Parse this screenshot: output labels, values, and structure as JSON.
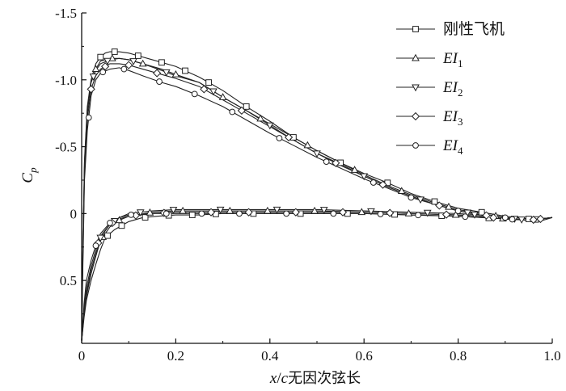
{
  "chart_data": {
    "type": "line",
    "title": "",
    "xlabel": "x/c无因次弦长",
    "ylabel": "Cp",
    "xlim": [
      0,
      1.0
    ],
    "ylim": [
      0.97,
      -1.5
    ],
    "y_inverted": true,
    "grid": false,
    "legend_position": "top-right",
    "xticks": [
      "0",
      "0.2",
      "0.4",
      "0.6",
      "0.8",
      "1.0"
    ],
    "yticks": [
      "-1.5",
      "-1.0",
      "-0.5",
      "0",
      "0.5"
    ],
    "series": [
      {
        "name": "刚性飞机",
        "marker": "square",
        "upper": [
          [
            0,
            0.95
          ],
          [
            0.002,
            0.4
          ],
          [
            0.006,
            -0.4
          ],
          [
            0.012,
            -0.8
          ],
          [
            0.02,
            -1.0
          ],
          [
            0.03,
            -1.12
          ],
          [
            0.04,
            -1.17
          ],
          [
            0.05,
            -1.2
          ],
          [
            0.06,
            -1.21
          ],
          [
            0.08,
            -1.21
          ],
          [
            0.1,
            -1.2
          ],
          [
            0.12,
            -1.18
          ],
          [
            0.15,
            -1.15
          ],
          [
            0.2,
            -1.1
          ],
          [
            0.25,
            -1.02
          ],
          [
            0.3,
            -0.92
          ],
          [
            0.35,
            -0.8
          ],
          [
            0.4,
            -0.69
          ],
          [
            0.45,
            -0.57
          ],
          [
            0.5,
            -0.47
          ],
          [
            0.55,
            -0.38
          ],
          [
            0.6,
            -0.3
          ],
          [
            0.65,
            -0.23
          ],
          [
            0.7,
            -0.15
          ],
          [
            0.75,
            -0.09
          ],
          [
            0.8,
            -0.04
          ],
          [
            0.85,
            -0.01
          ],
          [
            0.9,
            0.02
          ],
          [
            0.95,
            0.04
          ],
          [
            0.98,
            0.05
          ],
          [
            1.0,
            0.03
          ]
        ],
        "lower": [
          [
            0,
            0.95
          ],
          [
            0.005,
            0.78
          ],
          [
            0.01,
            0.65
          ],
          [
            0.02,
            0.5
          ],
          [
            0.03,
            0.38
          ],
          [
            0.04,
            0.27
          ],
          [
            0.05,
            0.18
          ],
          [
            0.07,
            0.12
          ],
          [
            0.1,
            0.06
          ],
          [
            0.13,
            0.03
          ],
          [
            0.16,
            0.02
          ],
          [
            0.2,
            0.01
          ],
          [
            0.25,
            0.01
          ],
          [
            0.3,
            0.0
          ],
          [
            0.4,
            0.0
          ],
          [
            0.5,
            0.0
          ],
          [
            0.6,
            0.0
          ],
          [
            0.7,
            0.01
          ],
          [
            0.8,
            0.02
          ],
          [
            0.85,
            0.03
          ],
          [
            0.9,
            0.04
          ],
          [
            0.95,
            0.05
          ],
          [
            1.0,
            0.03
          ]
        ]
      },
      {
        "name": "EI1",
        "marker": "triangle-up",
        "upper": [
          [
            0,
            0.95
          ],
          [
            0.002,
            0.4
          ],
          [
            0.006,
            -0.35
          ],
          [
            0.012,
            -0.75
          ],
          [
            0.02,
            -0.98
          ],
          [
            0.03,
            -1.08
          ],
          [
            0.04,
            -1.14
          ],
          [
            0.06,
            -1.16
          ],
          [
            0.08,
            -1.16
          ],
          [
            0.1,
            -1.15
          ],
          [
            0.13,
            -1.12
          ],
          [
            0.17,
            -1.08
          ],
          [
            0.2,
            -1.04
          ],
          [
            0.25,
            -0.98
          ],
          [
            0.3,
            -0.87
          ],
          [
            0.35,
            -0.77
          ],
          [
            0.4,
            -0.67
          ],
          [
            0.45,
            -0.57
          ],
          [
            0.5,
            -0.47
          ],
          [
            0.55,
            -0.38
          ],
          [
            0.6,
            -0.29
          ],
          [
            0.65,
            -0.21
          ],
          [
            0.7,
            -0.14
          ],
          [
            0.75,
            -0.08
          ],
          [
            0.8,
            -0.03
          ],
          [
            0.85,
            0.0
          ],
          [
            0.9,
            0.03
          ],
          [
            0.95,
            0.05
          ],
          [
            1.0,
            0.03
          ]
        ],
        "lower": [
          [
            0,
            0.95
          ],
          [
            0.005,
            0.76
          ],
          [
            0.01,
            0.62
          ],
          [
            0.02,
            0.45
          ],
          [
            0.03,
            0.32
          ],
          [
            0.04,
            0.2
          ],
          [
            0.06,
            0.1
          ],
          [
            0.08,
            0.05
          ],
          [
            0.1,
            0.02
          ],
          [
            0.15,
            -0.01
          ],
          [
            0.2,
            -0.02
          ],
          [
            0.25,
            -0.02
          ],
          [
            0.3,
            -0.02
          ],
          [
            0.4,
            -0.02
          ],
          [
            0.5,
            -0.02
          ],
          [
            0.6,
            -0.01
          ],
          [
            0.7,
            0.0
          ],
          [
            0.8,
            0.01
          ],
          [
            0.85,
            0.02
          ],
          [
            0.9,
            0.04
          ],
          [
            0.95,
            0.05
          ],
          [
            1.0,
            0.03
          ]
        ]
      },
      {
        "name": "EI2",
        "marker": "triangle-down",
        "upper": [
          [
            0,
            0.95
          ],
          [
            0.002,
            0.4
          ],
          [
            0.006,
            -0.38
          ],
          [
            0.012,
            -0.78
          ],
          [
            0.02,
            -0.98
          ],
          [
            0.03,
            -1.07
          ],
          [
            0.04,
            -1.12
          ],
          [
            0.06,
            -1.15
          ],
          [
            0.08,
            -1.16
          ],
          [
            0.1,
            -1.15
          ],
          [
            0.13,
            -1.12
          ],
          [
            0.17,
            -1.07
          ],
          [
            0.2,
            -1.03
          ],
          [
            0.25,
            -0.98
          ],
          [
            0.3,
            -0.87
          ],
          [
            0.35,
            -0.77
          ],
          [
            0.4,
            -0.66
          ],
          [
            0.45,
            -0.55
          ],
          [
            0.5,
            -0.45
          ],
          [
            0.55,
            -0.37
          ],
          [
            0.6,
            -0.28
          ],
          [
            0.65,
            -0.2
          ],
          [
            0.7,
            -0.13
          ],
          [
            0.75,
            -0.07
          ],
          [
            0.8,
            -0.02
          ],
          [
            0.85,
            0.01
          ],
          [
            0.9,
            0.03
          ],
          [
            0.95,
            0.05
          ],
          [
            1.0,
            0.03
          ]
        ],
        "lower": [
          [
            0,
            0.95
          ],
          [
            0.005,
            0.74
          ],
          [
            0.01,
            0.6
          ],
          [
            0.02,
            0.42
          ],
          [
            0.03,
            0.3
          ],
          [
            0.04,
            0.18
          ],
          [
            0.06,
            0.08
          ],
          [
            0.08,
            0.03
          ],
          [
            0.1,
            0.0
          ],
          [
            0.15,
            -0.02
          ],
          [
            0.2,
            -0.03
          ],
          [
            0.25,
            -0.03
          ],
          [
            0.3,
            -0.03
          ],
          [
            0.4,
            -0.03
          ],
          [
            0.5,
            -0.03
          ],
          [
            0.6,
            -0.02
          ],
          [
            0.7,
            -0.01
          ],
          [
            0.8,
            0.0
          ],
          [
            0.85,
            0.01
          ],
          [
            0.9,
            0.03
          ],
          [
            0.95,
            0.05
          ],
          [
            1.0,
            0.03
          ]
        ]
      },
      {
        "name": "EI3",
        "marker": "diamond",
        "upper": [
          [
            0,
            0.95
          ],
          [
            0.002,
            0.45
          ],
          [
            0.006,
            -0.3
          ],
          [
            0.012,
            -0.7
          ],
          [
            0.02,
            -0.93
          ],
          [
            0.03,
            -1.03
          ],
          [
            0.04,
            -1.08
          ],
          [
            0.06,
            -1.12
          ],
          [
            0.08,
            -1.12
          ],
          [
            0.1,
            -1.11
          ],
          [
            0.13,
            -1.08
          ],
          [
            0.17,
            -1.04
          ],
          [
            0.2,
            -1.01
          ],
          [
            0.25,
            -0.95
          ],
          [
            0.3,
            -0.85
          ],
          [
            0.35,
            -0.75
          ],
          [
            0.4,
            -0.65
          ],
          [
            0.45,
            -0.55
          ],
          [
            0.5,
            -0.45
          ],
          [
            0.55,
            -0.36
          ],
          [
            0.6,
            -0.28
          ],
          [
            0.65,
            -0.2
          ],
          [
            0.7,
            -0.13
          ],
          [
            0.75,
            -0.07
          ],
          [
            0.8,
            -0.02
          ],
          [
            0.85,
            0.01
          ],
          [
            0.9,
            0.03
          ],
          [
            0.95,
            0.05
          ],
          [
            1.0,
            0.03
          ]
        ],
        "lower": [
          [
            0,
            0.95
          ],
          [
            0.005,
            0.72
          ],
          [
            0.01,
            0.56
          ],
          [
            0.02,
            0.39
          ],
          [
            0.03,
            0.27
          ],
          [
            0.04,
            0.17
          ],
          [
            0.06,
            0.08
          ],
          [
            0.08,
            0.04
          ],
          [
            0.1,
            0.02
          ],
          [
            0.15,
            0.0
          ],
          [
            0.2,
            -0.01
          ],
          [
            0.25,
            -0.01
          ],
          [
            0.3,
            -0.01
          ],
          [
            0.4,
            -0.01
          ],
          [
            0.5,
            -0.01
          ],
          [
            0.6,
            -0.01
          ],
          [
            0.7,
            0.0
          ],
          [
            0.8,
            0.01
          ],
          [
            0.85,
            0.02
          ],
          [
            0.9,
            0.04
          ],
          [
            0.95,
            0.05
          ],
          [
            1.0,
            0.03
          ]
        ]
      },
      {
        "name": "EI4",
        "marker": "circle",
        "upper": [
          [
            0,
            0.95
          ],
          [
            0.002,
            0.5
          ],
          [
            0.006,
            -0.25
          ],
          [
            0.012,
            -0.62
          ],
          [
            0.02,
            -0.88
          ],
          [
            0.03,
            -1.0
          ],
          [
            0.04,
            -1.05
          ],
          [
            0.06,
            -1.08
          ],
          [
            0.08,
            -1.09
          ],
          [
            0.1,
            -1.07
          ],
          [
            0.13,
            -1.03
          ],
          [
            0.17,
            -0.98
          ],
          [
            0.2,
            -0.95
          ],
          [
            0.25,
            -0.88
          ],
          [
            0.3,
            -0.8
          ],
          [
            0.35,
            -0.7
          ],
          [
            0.4,
            -0.6
          ],
          [
            0.45,
            -0.51
          ],
          [
            0.5,
            -0.42
          ],
          [
            0.55,
            -0.34
          ],
          [
            0.6,
            -0.26
          ],
          [
            0.65,
            -0.19
          ],
          [
            0.7,
            -0.12
          ],
          [
            0.75,
            -0.07
          ],
          [
            0.8,
            -0.02
          ],
          [
            0.85,
            0.01
          ],
          [
            0.9,
            0.03
          ],
          [
            0.95,
            0.05
          ],
          [
            1.0,
            0.03
          ]
        ],
        "lower": [
          [
            0,
            0.95
          ],
          [
            0.005,
            0.68
          ],
          [
            0.01,
            0.5
          ],
          [
            0.02,
            0.35
          ],
          [
            0.03,
            0.24
          ],
          [
            0.04,
            0.15
          ],
          [
            0.06,
            0.07
          ],
          [
            0.08,
            0.03
          ],
          [
            0.1,
            0.01
          ],
          [
            0.15,
            0.0
          ],
          [
            0.2,
            0.0
          ],
          [
            0.25,
            0.0
          ],
          [
            0.3,
            0.0
          ],
          [
            0.4,
            0.0
          ],
          [
            0.5,
            0.0
          ],
          [
            0.6,
            0.0
          ],
          [
            0.7,
            0.01
          ],
          [
            0.8,
            0.02
          ],
          [
            0.85,
            0.03
          ],
          [
            0.9,
            0.04
          ],
          [
            0.95,
            0.05
          ],
          [
            1.0,
            0.03
          ]
        ]
      }
    ]
  }
}
